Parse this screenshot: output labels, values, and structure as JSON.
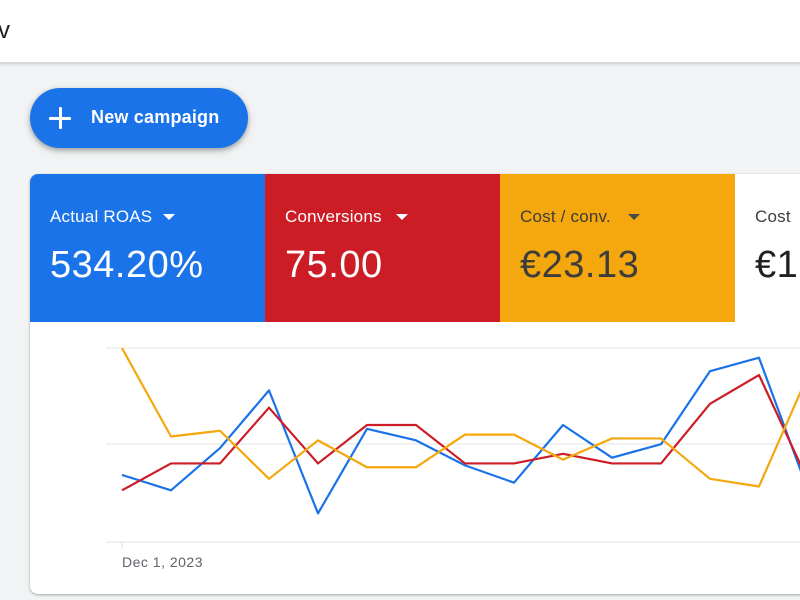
{
  "topbar": {
    "partial_text": "v"
  },
  "new_campaign_button": {
    "label": "New campaign",
    "icon": "plus-icon"
  },
  "metrics": [
    {
      "label": "Actual ROAS",
      "value": "534.20%",
      "color": "#1a73e8"
    },
    {
      "label": "Conversions",
      "value": "75.00",
      "color": "#cc1c26"
    },
    {
      "label": "Cost / conv.",
      "value": "€23.13",
      "color": "#f4a80d"
    },
    {
      "label": "Cost",
      "value": "€1",
      "color": "#ffffff"
    }
  ],
  "chart_data": {
    "type": "line",
    "x_tick_labels": [
      "Dec 1, 2023"
    ],
    "grid": true,
    "series": [
      {
        "color": "#1a73e8",
        "values": [
          38,
          30,
          52,
          82,
          18,
          62,
          56,
          43,
          34,
          64,
          47,
          54,
          92,
          99,
          30
        ]
      },
      {
        "color": "#cc1c26",
        "values": [
          30,
          44,
          44,
          73,
          44,
          64,
          64,
          44,
          44,
          49,
          44,
          44,
          75,
          90,
          35
        ]
      },
      {
        "color": "#f4a80d",
        "values": [
          104,
          58,
          61,
          36,
          56,
          42,
          42,
          59,
          59,
          46,
          57,
          57,
          36,
          32,
          90
        ]
      }
    ]
  }
}
